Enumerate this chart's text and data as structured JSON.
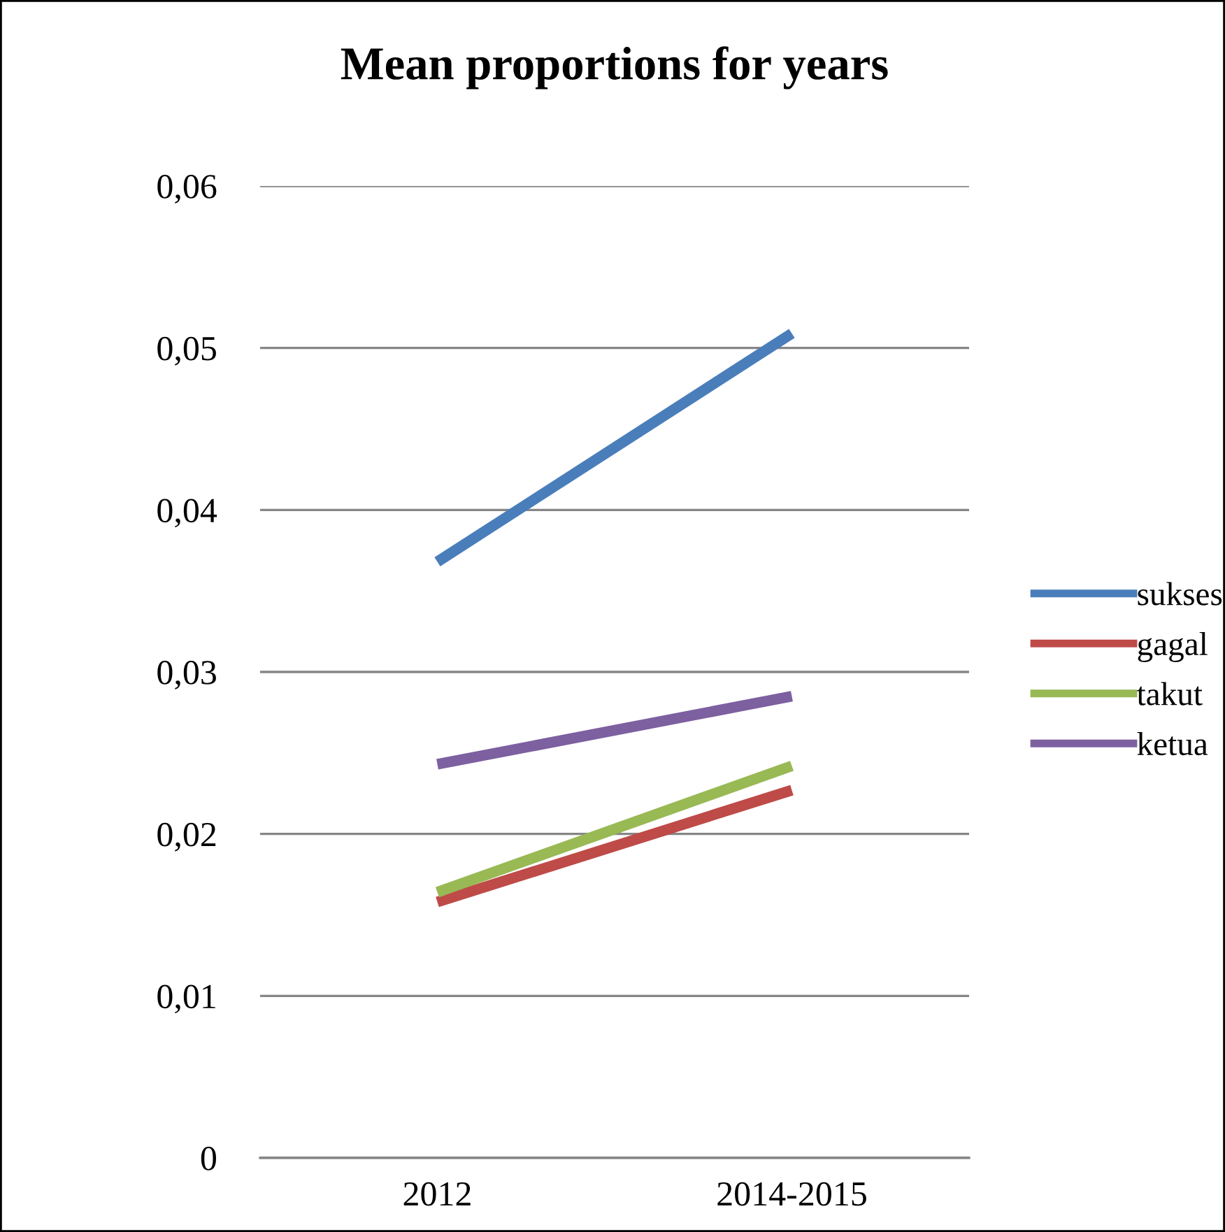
{
  "chart_data": {
    "type": "line",
    "title": "Mean proportions for years",
    "categories": [
      "2012",
      "2014-2015"
    ],
    "series": [
      {
        "name": "sukses",
        "color": "#4a7ebb",
        "values": [
          0.0368,
          0.0509
        ]
      },
      {
        "name": "gagal",
        "color": "#be4b48",
        "values": [
          0.0158,
          0.0227
        ]
      },
      {
        "name": "takut",
        "color": "#98b954",
        "values": [
          0.0164,
          0.0242
        ]
      },
      {
        "name": "ketua",
        "color": "#7d60a0",
        "values": [
          0.0243,
          0.0285
        ]
      }
    ],
    "ylim": [
      0,
      0.06
    ],
    "yticks": [
      {
        "value": 0,
        "label": "0"
      },
      {
        "value": 0.01,
        "label": "0,01"
      },
      {
        "value": 0.02,
        "label": "0,02"
      },
      {
        "value": 0.03,
        "label": "0,03"
      },
      {
        "value": 0.04,
        "label": "0,04"
      },
      {
        "value": 0.05,
        "label": "0,05"
      },
      {
        "value": 0.06,
        "label": "0,06"
      }
    ],
    "grid": "y",
    "legend": "right",
    "marker": "none",
    "line_style": "solid"
  }
}
